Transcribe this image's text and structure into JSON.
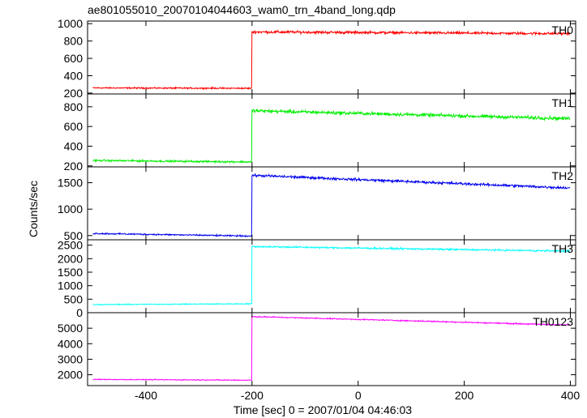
{
  "chart_data": {
    "type": "line",
    "title": "ae801055010_20070104044603_wam0_trn_4band_long.qdp",
    "ylabel": "Counts/sec",
    "xlabel": "Time [sec] 0 = 2007/01/04 04:46:03",
    "xlim": [
      -510,
      410
    ],
    "x_ticks": [
      -400,
      -200,
      0,
      200,
      400
    ],
    "step_time": -200,
    "x_start": -500,
    "x_end": 400,
    "grid": false,
    "panels": [
      {
        "name": "TH0",
        "color": "#ff0000",
        "ylim": [
          190,
          1030
        ],
        "y_ticks": [
          200,
          400,
          600,
          800,
          1000
        ],
        "pre": {
          "start": 260,
          "end": 255,
          "noise": 12
        },
        "post": {
          "start": 905,
          "end": 885,
          "noise": 22
        }
      },
      {
        "name": "TH1",
        "color": "#00ee00",
        "ylim": [
          190,
          930
        ],
        "y_ticks": [
          200,
          400,
          600,
          800
        ],
        "pre": {
          "start": 255,
          "end": 240,
          "noise": 14
        },
        "post": {
          "start": 760,
          "end": 680,
          "noise": 25
        }
      },
      {
        "name": "TH2",
        "color": "#0000ee",
        "ylim": [
          420,
          1800
        ],
        "y_ticks": [
          500,
          1000,
          1500
        ],
        "pre": {
          "start": 540,
          "end": 490,
          "noise": 20
        },
        "post": {
          "start": 1640,
          "end": 1400,
          "noise": 35
        }
      },
      {
        "name": "TH3",
        "color": "#00ffff",
        "ylim": [
          0,
          2700
        ],
        "y_ticks": [
          0,
          500,
          1000,
          1500,
          2000,
          2500
        ],
        "y_tick_labels": [
          "0",
          "500",
          "1000",
          "1500",
          "2000",
          "2500"
        ],
        "pre": {
          "start": 300,
          "end": 330,
          "noise": 25
        },
        "post": {
          "start": 2450,
          "end": 2280,
          "noise": 45
        }
      },
      {
        "name": "TH0123",
        "color": "#ff00ff",
        "ylim": [
          1300,
          6000
        ],
        "y_ticks": [
          2000,
          3000,
          4000,
          5000
        ],
        "pre": {
          "start": 1700,
          "end": 1650,
          "noise": 40
        },
        "post": {
          "start": 5750,
          "end": 5200,
          "noise": 55
        }
      }
    ]
  }
}
